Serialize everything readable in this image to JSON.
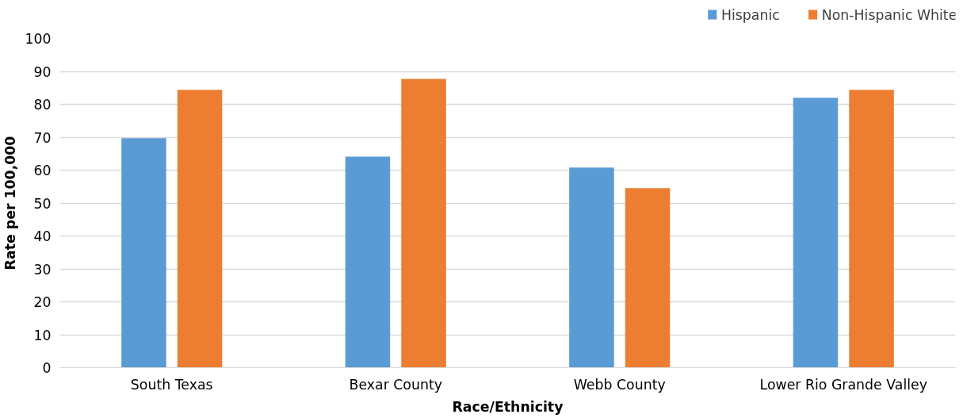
{
  "chart_data": {
    "type": "bar",
    "xlabel": "Race/Ethnicity",
    "ylabel": "Rate per 100,000",
    "categories": [
      "South Texas",
      "Bexar County",
      "Webb County",
      "Lower Rio Grande Valley"
    ],
    "series": [
      {
        "name": "Hispanic",
        "color": "#5b9bd5",
        "values": [
          69.7,
          64.1,
          60.8,
          82.0
        ]
      },
      {
        "name": "Non-Hispanic White",
        "color": "#ed7d31",
        "values": [
          84.4,
          87.7,
          54.5,
          84.4
        ]
      }
    ],
    "ylim": [
      0,
      100
    ],
    "yticks": [
      0,
      10,
      20,
      30,
      40,
      50,
      60,
      70,
      80,
      90,
      100
    ],
    "grid": "y",
    "legend": "top right"
  }
}
